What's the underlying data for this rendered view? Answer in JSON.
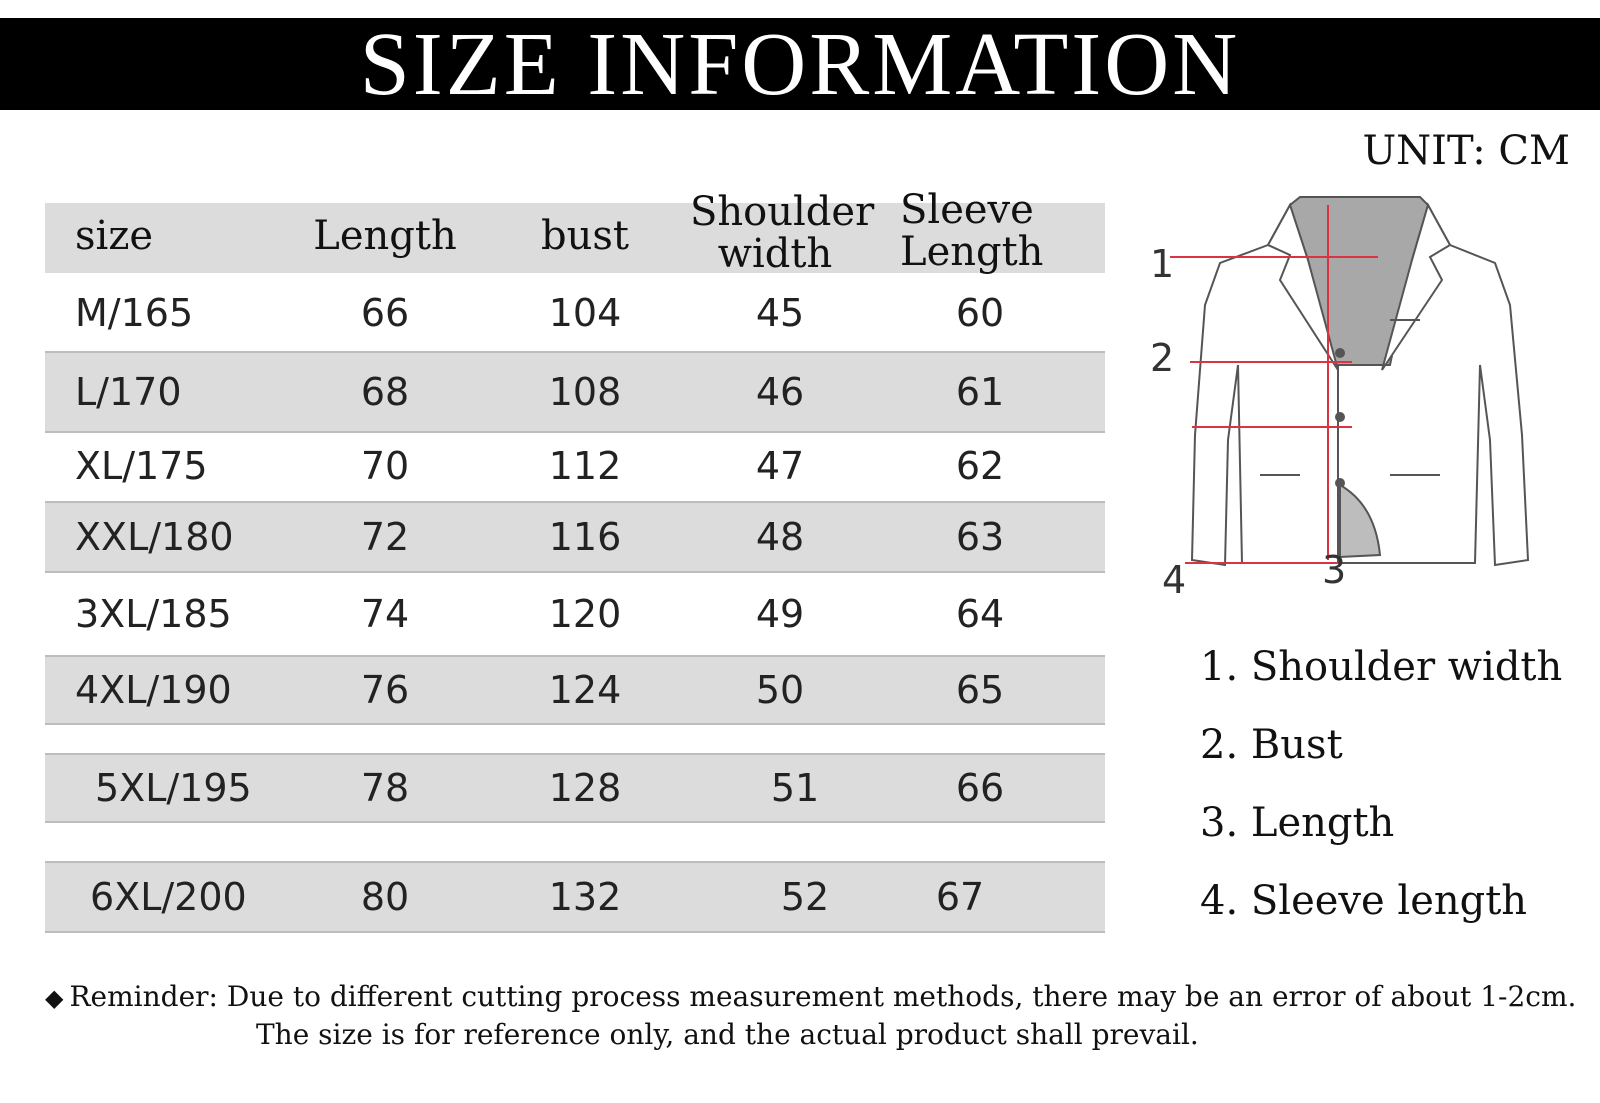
{
  "title": "SIZE INFORMATION",
  "unit": "UNIT: CM",
  "table": {
    "headers": [
      "size",
      "Length",
      "bust",
      "Shoulder width",
      "Sleeve Length"
    ],
    "rows": [
      [
        "M/165",
        "66",
        "104",
        "45",
        "60"
      ],
      [
        "L/170",
        "68",
        "108",
        "46",
        "61"
      ],
      [
        "XL/175",
        "70",
        "112",
        "47",
        "62"
      ],
      [
        "XXL/180",
        "72",
        "116",
        "48",
        "63"
      ],
      [
        "3XL/185",
        "74",
        "120",
        "49",
        "64"
      ],
      [
        "4XL/190",
        "76",
        "124",
        "50",
        "65"
      ],
      [
        "5XL/195",
        "78",
        "128",
        "51",
        "66"
      ],
      [
        "6XL/200",
        "80",
        "132",
        "52",
        "67"
      ]
    ]
  },
  "diagram": {
    "markers": [
      "1",
      "2",
      "3",
      "4"
    ],
    "colors": {
      "measure_line": "#d9343f",
      "outline": "#555555",
      "collar": "#a8a8a8"
    }
  },
  "legend": [
    "1. Shoulder width",
    "2. Bust",
    "3. Length",
    "4. Sleeve length"
  ],
  "reminder": "Reminder: Due to different cutting process measurement methods, there may be an error of about 1-2cm.",
  "note": "The size is for reference only, and the actual product shall prevail."
}
